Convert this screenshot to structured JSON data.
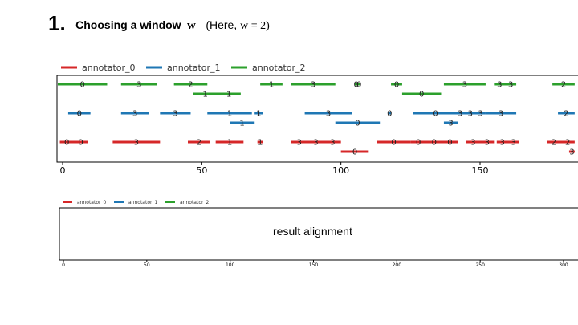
{
  "header": {
    "step_number": "1.",
    "title": "Choosing a window",
    "window_var": "w",
    "note_prefix": "(Here,",
    "note_expr": "w = 2)"
  },
  "result_label": "result alignment",
  "colors": {
    "annotator_0": "#d62728",
    "annotator_1": "#1f77b4",
    "annotator_2": "#2ca02c"
  },
  "chart_data": [
    {
      "type": "segments",
      "legend": [
        "annotator_0",
        "annotator_1",
        "annotator_2"
      ],
      "legend_position": "top-left",
      "xlim": [
        -2,
        185
      ],
      "xticks": [
        0,
        50,
        100,
        150
      ],
      "series": [
        {
          "name": "annotator_0",
          "segments": [
            {
              "start": -1,
              "end": 9,
              "labels": [
                "0",
                "0"
              ]
            },
            {
              "start": 18,
              "end": 35,
              "labels": [
                "3"
              ]
            },
            {
              "start": 45,
              "end": 53,
              "labels": [
                "2"
              ]
            },
            {
              "start": 55,
              "end": 65,
              "labels": [
                "1"
              ]
            },
            {
              "start": 70,
              "end": 72,
              "labels": [
                "1"
              ]
            },
            {
              "start": 82,
              "end": 100,
              "labels": [
                "3",
                "3",
                "3"
              ]
            },
            {
              "start": 100,
              "end": 110,
              "labels": [
                "0"
              ],
              "sub": true
            },
            {
              "start": 113,
              "end": 125,
              "labels": [
                "0"
              ]
            },
            {
              "start": 125,
              "end": 142,
              "labels": [
                "0",
                "0",
                "0"
              ]
            },
            {
              "start": 145,
              "end": 155,
              "labels": [
                "3",
                "3"
              ]
            },
            {
              "start": 156,
              "end": 164,
              "labels": [
                "3",
                "3"
              ]
            },
            {
              "start": 174,
              "end": 184,
              "labels": [
                "2",
                "2"
              ]
            },
            {
              "start": 182,
              "end": 184,
              "labels": [
                "3"
              ],
              "sub": true
            }
          ]
        },
        {
          "name": "annotator_1",
          "segments": [
            {
              "start": 2,
              "end": 10,
              "labels": [
                "0"
              ]
            },
            {
              "start": 21,
              "end": 31,
              "labels": [
                "3"
              ]
            },
            {
              "start": 35,
              "end": 46,
              "labels": [
                "3"
              ]
            },
            {
              "start": 52,
              "end": 68,
              "labels": [
                "1"
              ]
            },
            {
              "start": 69,
              "end": 72,
              "labels": [
                "1"
              ]
            },
            {
              "start": 60,
              "end": 69,
              "labels": [
                "1"
              ],
              "sub": true
            },
            {
              "start": 87,
              "end": 104,
              "labels": [
                "3"
              ]
            },
            {
              "start": 98,
              "end": 114,
              "labels": [
                "0"
              ],
              "sub": true
            },
            {
              "start": 117,
              "end": 118,
              "labels": [
                "0"
              ]
            },
            {
              "start": 126,
              "end": 142,
              "labels": [
                "0"
              ]
            },
            {
              "start": 141,
              "end": 152,
              "labels": [
                "3",
                "3",
                "3"
              ]
            },
            {
              "start": 137,
              "end": 142,
              "labels": [
                "3"
              ],
              "sub": true
            },
            {
              "start": 152,
              "end": 163,
              "labels": [
                "3"
              ]
            },
            {
              "start": 178,
              "end": 184,
              "labels": [
                "2"
              ]
            }
          ]
        },
        {
          "name": "annotator_2",
          "segments": [
            {
              "start": -2,
              "end": 16,
              "labels": [
                "0"
              ]
            },
            {
              "start": 21,
              "end": 34,
              "labels": [
                "3"
              ]
            },
            {
              "start": 40,
              "end": 52,
              "labels": [
                "2"
              ]
            },
            {
              "start": 47,
              "end": 64,
              "labels": [
                "1",
                "1"
              ],
              "sub": true
            },
            {
              "start": 71,
              "end": 79,
              "labels": [
                "1"
              ]
            },
            {
              "start": 82,
              "end": 98,
              "labels": [
                "3"
              ]
            },
            {
              "start": 105,
              "end": 107,
              "labels": [
                "0",
                "0"
              ]
            },
            {
              "start": 118,
              "end": 122,
              "labels": [
                "0"
              ]
            },
            {
              "start": 122,
              "end": 136,
              "labels": [
                "0"
              ],
              "sub": true
            },
            {
              "start": 137,
              "end": 152,
              "labels": [
                "3"
              ]
            },
            {
              "start": 155,
              "end": 163,
              "labels": [
                "3",
                "3"
              ]
            },
            {
              "start": 176,
              "end": 184,
              "labels": [
                "2"
              ]
            }
          ]
        }
      ]
    },
    {
      "type": "segments",
      "legend": [
        "annotator_0",
        "annotator_1",
        "annotator_2"
      ],
      "legend_position": "top-left",
      "xlim": [
        -1,
        306
      ],
      "xticks": [
        0,
        50,
        100,
        150,
        200,
        250,
        300
      ],
      "series": []
    }
  ]
}
